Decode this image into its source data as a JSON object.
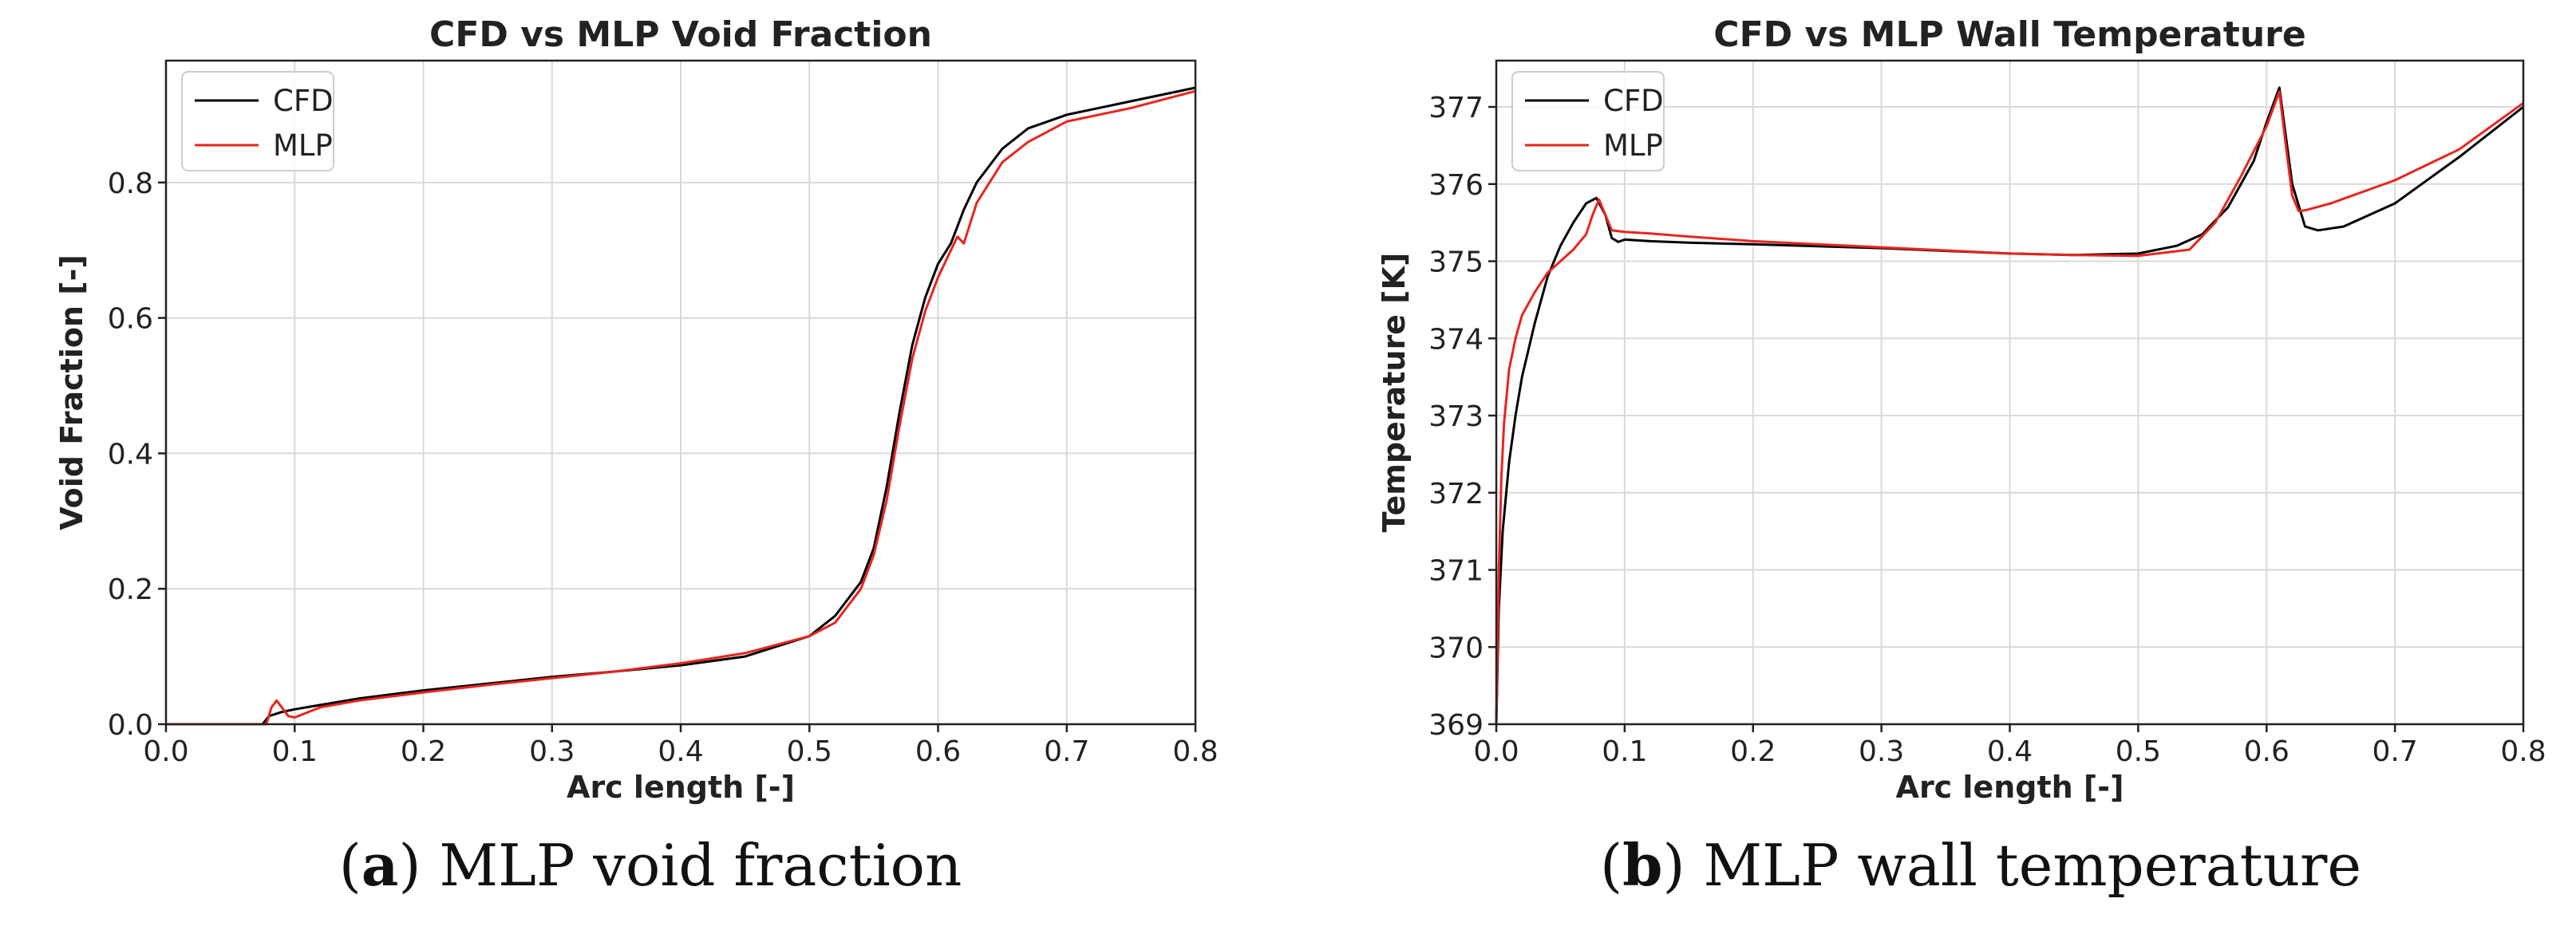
{
  "chart_data": [
    {
      "type": "line",
      "title": "CFD vs MLP Void Fraction",
      "xlabel": "Arc length [-]",
      "ylabel": "Void Fraction [-]",
      "xlim": [
        0.0,
        0.8
      ],
      "ylim": [
        0.0,
        0.98
      ],
      "xticks": [
        0.0,
        0.1,
        0.2,
        0.3,
        0.4,
        0.5,
        0.6,
        0.7,
        0.8
      ],
      "xtick_labels": [
        "0.0",
        "0.1",
        "0.2",
        "0.3",
        "0.4",
        "0.5",
        "0.6",
        "0.7",
        "0.8"
      ],
      "yticks": [
        0.0,
        0.2,
        0.4,
        0.6,
        0.8
      ],
      "ytick_labels": [
        "0.0",
        "0.2",
        "0.4",
        "0.6",
        "0.8"
      ],
      "grid": true,
      "legend_position": "top-left",
      "caption_letter": "a",
      "caption_text": "MLP void fraction",
      "series": [
        {
          "name": "CFD",
          "color": "#000000",
          "x": [
            0.0,
            0.075,
            0.08,
            0.09,
            0.1,
            0.15,
            0.2,
            0.25,
            0.3,
            0.35,
            0.4,
            0.45,
            0.5,
            0.52,
            0.54,
            0.55,
            0.56,
            0.57,
            0.58,
            0.59,
            0.6,
            0.61,
            0.62,
            0.63,
            0.65,
            0.67,
            0.7,
            0.75,
            0.8
          ],
          "y": [
            0.0,
            0.0,
            0.012,
            0.018,
            0.022,
            0.038,
            0.05,
            0.06,
            0.07,
            0.078,
            0.087,
            0.1,
            0.13,
            0.16,
            0.21,
            0.26,
            0.35,
            0.46,
            0.56,
            0.63,
            0.68,
            0.71,
            0.76,
            0.8,
            0.85,
            0.88,
            0.9,
            0.92,
            0.94
          ]
        },
        {
          "name": "MLP",
          "color": "#e8251f",
          "x": [
            0.0,
            0.078,
            0.082,
            0.086,
            0.09,
            0.095,
            0.1,
            0.12,
            0.15,
            0.2,
            0.25,
            0.3,
            0.35,
            0.4,
            0.45,
            0.5,
            0.52,
            0.54,
            0.55,
            0.56,
            0.57,
            0.58,
            0.59,
            0.6,
            0.61,
            0.615,
            0.62,
            0.63,
            0.65,
            0.67,
            0.7,
            0.75,
            0.8
          ],
          "y": [
            0.0,
            0.0,
            0.025,
            0.035,
            0.025,
            0.012,
            0.01,
            0.025,
            0.035,
            0.047,
            0.058,
            0.068,
            0.078,
            0.09,
            0.105,
            0.13,
            0.15,
            0.2,
            0.25,
            0.33,
            0.44,
            0.54,
            0.61,
            0.66,
            0.7,
            0.72,
            0.71,
            0.77,
            0.83,
            0.86,
            0.89,
            0.91,
            0.935
          ]
        }
      ]
    },
    {
      "type": "line",
      "title": "CFD vs MLP Wall Temperature",
      "xlabel": "Arc length [-]",
      "ylabel": "Temperature [K]",
      "xlim": [
        0.0,
        0.8
      ],
      "ylim": [
        369.0,
        377.6
      ],
      "xticks": [
        0.0,
        0.1,
        0.2,
        0.3,
        0.4,
        0.5,
        0.6,
        0.7,
        0.8
      ],
      "xtick_labels": [
        "0.0",
        "0.1",
        "0.2",
        "0.3",
        "0.4",
        "0.5",
        "0.6",
        "0.7",
        "0.8"
      ],
      "yticks": [
        369,
        370,
        371,
        372,
        373,
        374,
        375,
        376,
        377
      ],
      "ytick_labels": [
        "369",
        "370",
        "371",
        "372",
        "373",
        "374",
        "375",
        "376",
        "377"
      ],
      "grid": true,
      "legend_position": "top-left",
      "caption_letter": "b",
      "caption_text": "MLP wall temperature",
      "series": [
        {
          "name": "CFD",
          "color": "#000000",
          "x": [
            0.0,
            0.002,
            0.005,
            0.01,
            0.015,
            0.02,
            0.03,
            0.04,
            0.05,
            0.06,
            0.07,
            0.078,
            0.085,
            0.09,
            0.095,
            0.1,
            0.12,
            0.15,
            0.2,
            0.3,
            0.4,
            0.45,
            0.5,
            0.53,
            0.55,
            0.57,
            0.59,
            0.6,
            0.61,
            0.62,
            0.63,
            0.64,
            0.66,
            0.7,
            0.75,
            0.8
          ],
          "y": [
            369.0,
            370.5,
            371.5,
            372.4,
            373.0,
            373.5,
            374.2,
            374.8,
            375.2,
            375.5,
            375.75,
            375.82,
            375.6,
            375.3,
            375.25,
            375.28,
            375.26,
            375.24,
            375.22,
            375.17,
            375.1,
            375.08,
            375.1,
            375.2,
            375.35,
            375.7,
            376.3,
            376.8,
            377.25,
            376.0,
            375.45,
            375.4,
            375.45,
            375.75,
            376.35,
            377.0
          ]
        },
        {
          "name": "MLP",
          "color": "#e8251f",
          "x": [
            0.0,
            0.002,
            0.004,
            0.006,
            0.01,
            0.015,
            0.02,
            0.03,
            0.04,
            0.05,
            0.06,
            0.07,
            0.075,
            0.08,
            0.085,
            0.09,
            0.1,
            0.12,
            0.15,
            0.2,
            0.3,
            0.4,
            0.45,
            0.5,
            0.54,
            0.56,
            0.58,
            0.6,
            0.61,
            0.615,
            0.62,
            0.625,
            0.63,
            0.65,
            0.7,
            0.75,
            0.8
          ],
          "y": [
            369.0,
            371.0,
            372.2,
            372.9,
            373.6,
            374.0,
            374.3,
            374.6,
            374.85,
            375.0,
            375.15,
            375.35,
            375.6,
            375.8,
            375.6,
            375.4,
            375.38,
            375.36,
            375.32,
            375.26,
            375.18,
            375.1,
            375.08,
            375.07,
            375.15,
            375.5,
            376.1,
            376.75,
            377.2,
            376.5,
            375.85,
            375.65,
            375.66,
            375.75,
            376.05,
            376.45,
            377.05
          ]
        }
      ]
    }
  ]
}
